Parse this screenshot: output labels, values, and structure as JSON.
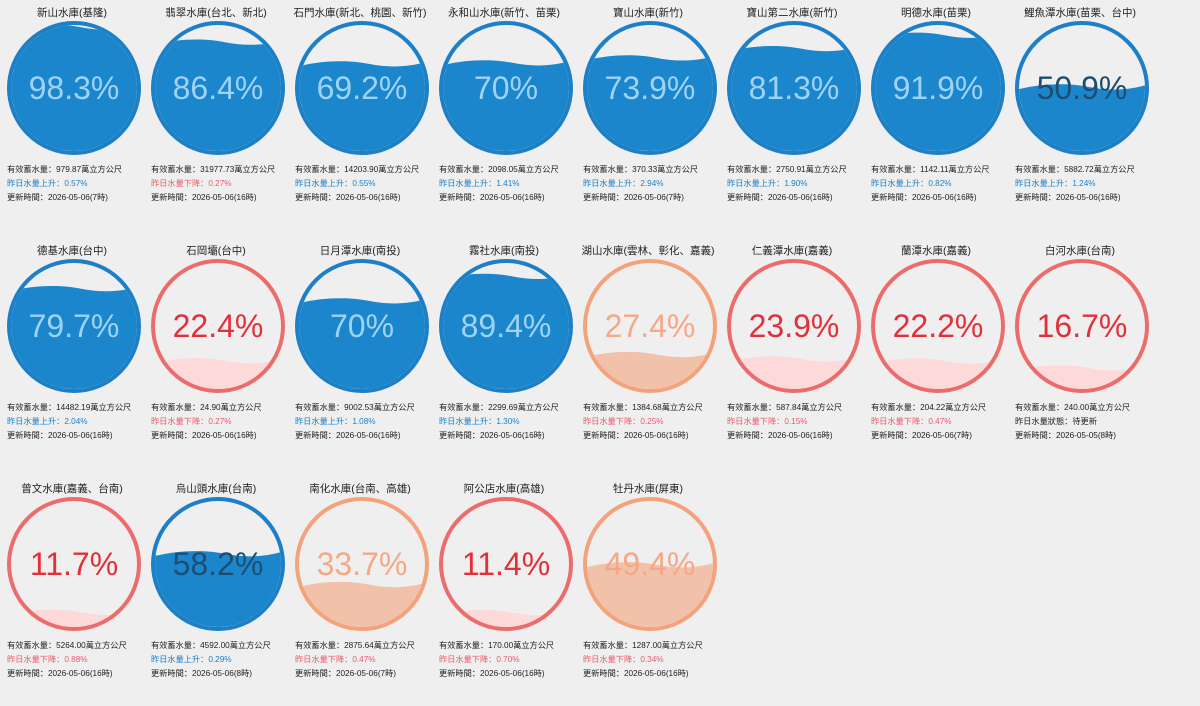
{
  "reservoirs": [
    {
      "name": "新山水庫(基隆)",
      "pct": 98.3,
      "pct_text": "98.3%",
      "theme": "blue",
      "storage": "有效蓄水量：979.87萬立方公尺",
      "change": "昨日水量上升：0.57%",
      "change_dir": "up",
      "updated": "更新時間：2026-05-06(7時)"
    },
    {
      "name": "翡翠水庫(台北、新北)",
      "pct": 86.4,
      "pct_text": "86.4%",
      "theme": "blue",
      "storage": "有效蓄水量：31977.73萬立方公尺",
      "change": "昨日水量下降：0.27%",
      "change_dir": "down",
      "updated": "更新時間：2026-05-06(16時)"
    },
    {
      "name": "石門水庫(新北、桃園、新竹)",
      "pct": 69.2,
      "pct_text": "69.2%",
      "theme": "blue",
      "storage": "有效蓄水量：14203.90萬立方公尺",
      "change": "昨日水量上升：0.55%",
      "change_dir": "up",
      "updated": "更新時間：2026-05-06(16時)"
    },
    {
      "name": "永和山水庫(新竹、苗栗)",
      "pct": 70,
      "pct_text": "70%",
      "theme": "blue",
      "storage": "有效蓄水量：2098.05萬立方公尺",
      "change": "昨日水量上升：1.41%",
      "change_dir": "up",
      "updated": "更新時間：2026-05-06(16時)"
    },
    {
      "name": "寶山水庫(新竹)",
      "pct": 73.9,
      "pct_text": "73.9%",
      "theme": "blue",
      "storage": "有效蓄水量：370.33萬立方公尺",
      "change": "昨日水量上升：2.94%",
      "change_dir": "up",
      "updated": "更新時間：2026-05-06(7時)"
    },
    {
      "name": "寶山第二水庫(新竹)",
      "pct": 81.3,
      "pct_text": "81.3%",
      "theme": "blue",
      "storage": "有效蓄水量：2750.91萬立方公尺",
      "change": "昨日水量上升：1.90%",
      "change_dir": "up",
      "updated": "更新時間：2026-05-06(16時)"
    },
    {
      "name": "明德水庫(苗栗)",
      "pct": 91.9,
      "pct_text": "91.9%",
      "theme": "blue",
      "storage": "有效蓄水量：1142.11萬立方公尺",
      "change": "昨日水量上升：0.82%",
      "change_dir": "up",
      "updated": "更新時間：2026-05-06(16時)"
    },
    {
      "name": "鯉魚潭水庫(苗栗、台中)",
      "pct": 50.9,
      "pct_text": "50.9%",
      "theme": "blue",
      "storage": "有效蓄水量：5882.72萬立方公尺",
      "change": "昨日水量上升：1.24%",
      "change_dir": "up",
      "updated": "更新時間：2026-05-06(16時)"
    },
    {
      "name": "德基水庫(台中)",
      "pct": 79.7,
      "pct_text": "79.7%",
      "theme": "blue",
      "storage": "有效蓄水量：14482.19萬立方公尺",
      "change": "昨日水量上升：2.04%",
      "change_dir": "up",
      "updated": "更新時間：2026-05-06(16時)"
    },
    {
      "name": "石岡壩(台中)",
      "pct": 22.4,
      "pct_text": "22.4%",
      "theme": "red",
      "storage": "有效蓄水量：24.90萬立方公尺",
      "change": "昨日水量下降：0.27%",
      "change_dir": "down",
      "updated": "更新時間：2026-05-06(16時)"
    },
    {
      "name": "日月潭水庫(南投)",
      "pct": 70,
      "pct_text": "70%",
      "theme": "blue",
      "storage": "有效蓄水量：9002.53萬立方公尺",
      "change": "昨日水量上升：1.08%",
      "change_dir": "up",
      "updated": "更新時間：2026-05-06(16時)"
    },
    {
      "name": "霧社水庫(南投)",
      "pct": 89.4,
      "pct_text": "89.4%",
      "theme": "blue",
      "storage": "有效蓄水量：2299.69萬立方公尺",
      "change": "昨日水量上升：1.30%",
      "change_dir": "up",
      "updated": "更新時間：2026-05-06(16時)"
    },
    {
      "name": "湖山水庫(雲林、彰化、嘉義)",
      "pct": 27.4,
      "pct_text": "27.4%",
      "theme": "orange",
      "storage": "有效蓄水量：1384.68萬立方公尺",
      "change": "昨日水量下降：0.25%",
      "change_dir": "down",
      "updated": "更新時間：2026-05-06(16時)"
    },
    {
      "name": "仁義潭水庫(嘉義)",
      "pct": 23.9,
      "pct_text": "23.9%",
      "theme": "red",
      "storage": "有效蓄水量：587.84萬立方公尺",
      "change": "昨日水量下降：0.15%",
      "change_dir": "down",
      "updated": "更新時間：2026-05-06(16時)"
    },
    {
      "name": "蘭潭水庫(嘉義)",
      "pct": 22.2,
      "pct_text": "22.2%",
      "theme": "red",
      "storage": "有效蓄水量：204.22萬立方公尺",
      "change": "昨日水量下降：0.47%",
      "change_dir": "down",
      "updated": "更新時間：2026-05-06(7時)"
    },
    {
      "name": "白河水庫(台南)",
      "pct": 16.7,
      "pct_text": "16.7%",
      "theme": "red",
      "storage": "有效蓄水量：240.00萬立方公尺",
      "change": "昨日水量狀態：待更新",
      "change_dir": "neutral",
      "updated": "更新時間：2026-05-05(8時)"
    },
    {
      "name": "曾文水庫(嘉義、台南)",
      "pct": 11.7,
      "pct_text": "11.7%",
      "theme": "red",
      "storage": "有效蓄水量：5264.00萬立方公尺",
      "change": "昨日水量下降：0.88%",
      "change_dir": "down",
      "updated": "更新時間：2026-05-06(16時)"
    },
    {
      "name": "烏山頭水庫(台南)",
      "pct": 58.2,
      "pct_text": "58.2%",
      "theme": "blue",
      "storage": "有效蓄水量：4592.00萬立方公尺",
      "change": "昨日水量上升：0.29%",
      "change_dir": "up",
      "updated": "更新時間：2026-05-06(8時)"
    },
    {
      "name": "南化水庫(台南、高雄)",
      "pct": 33.7,
      "pct_text": "33.7%",
      "theme": "orange",
      "storage": "有效蓄水量：2875.64萬立方公尺",
      "change": "昨日水量下降：0.47%",
      "change_dir": "down",
      "updated": "更新時間：2026-05-06(7時)"
    },
    {
      "name": "阿公店水庫(高雄)",
      "pct": 11.4,
      "pct_text": "11.4%",
      "theme": "red",
      "storage": "有效蓄水量：170.00萬立方公尺",
      "change": "昨日水量下降：0.70%",
      "change_dir": "down",
      "updated": "更新時間：2026-05-06(16時)"
    },
    {
      "name": "牡丹水庫(屏東)",
      "pct": 49.4,
      "pct_text": "49.4%",
      "theme": "orange",
      "storage": "有效蓄水量：1287.00萬立方公尺",
      "change": "昨日水量下降：0.34%",
      "change_dir": "down",
      "updated": "更新時間：2026-05-06(16時)"
    }
  ],
  "colors": {
    "blue_ring": "#1d7fc6",
    "blue_fill": "#1b86cc",
    "blue_text": "#9fd3f5",
    "blue_text_dark": "#1d4e72",
    "red_ring": "#ec6c6c",
    "red_fill": "#fdd9d9",
    "red_text": "#e2303b",
    "orange_ring": "#f4a27c",
    "orange_fill": "#f2c1aa",
    "orange_text": "#f5a888"
  }
}
